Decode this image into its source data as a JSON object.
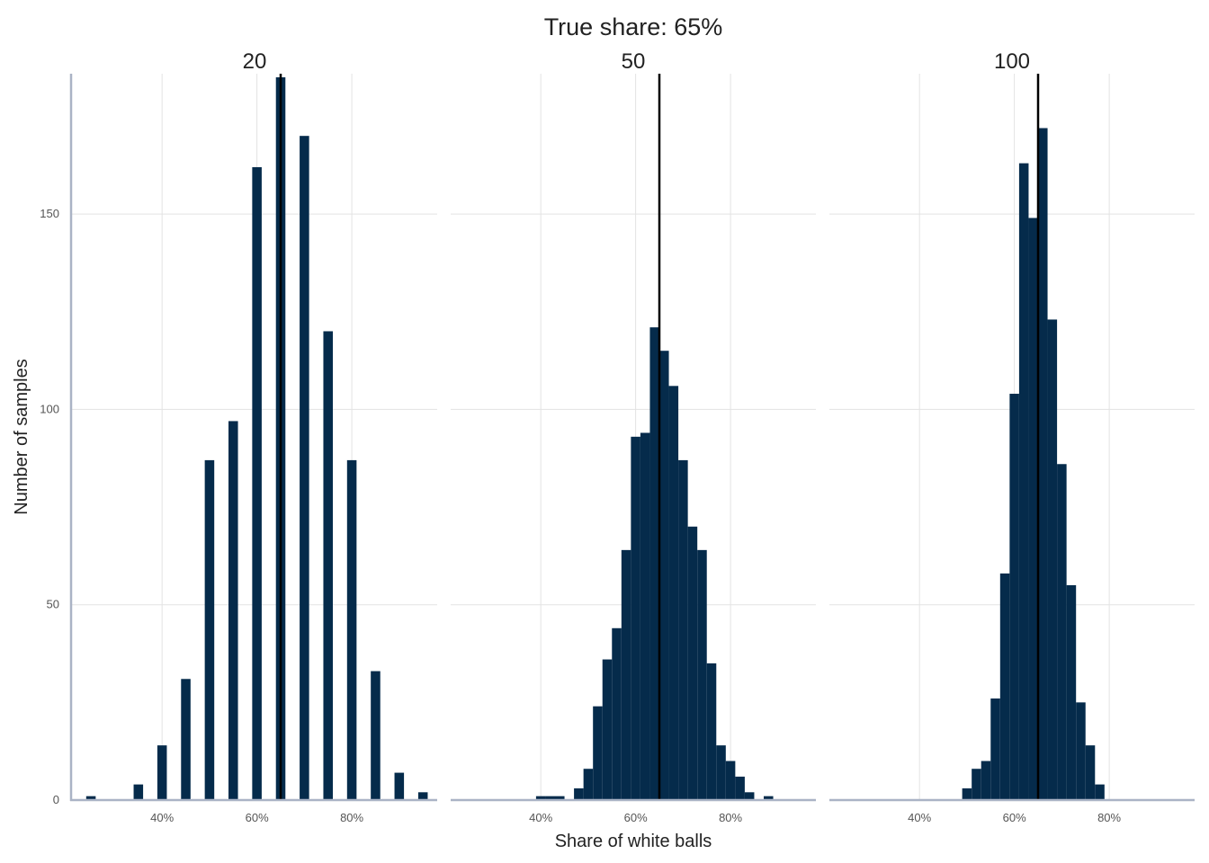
{
  "chart_data": {
    "type": "bar",
    "title": "True share: 65%",
    "xlabel": "Share of white balls",
    "ylabel": "Number of samples",
    "xlim": [
      0.21,
      0.98
    ],
    "ylim": [
      0,
      185
    ],
    "xticks": [
      0.4,
      0.6,
      0.8
    ],
    "xtick_labels": [
      "40%",
      "60%",
      "80%"
    ],
    "yticks": [
      0,
      50,
      100,
      150
    ],
    "ytick_labels": [
      "0",
      "50",
      "100",
      "150"
    ],
    "reference_line": {
      "x": 0.65
    },
    "grid": true,
    "bar_color": "#052b4b",
    "facets": [
      {
        "label": "20",
        "bin_width": 0.02,
        "bins": [
          {
            "x": 0.25,
            "count": 1
          },
          {
            "x": 0.35,
            "count": 4
          },
          {
            "x": 0.4,
            "count": 14
          },
          {
            "x": 0.45,
            "count": 31
          },
          {
            "x": 0.5,
            "count": 87
          },
          {
            "x": 0.55,
            "count": 97
          },
          {
            "x": 0.6,
            "count": 162
          },
          {
            "x": 0.65,
            "count": 185
          },
          {
            "x": 0.7,
            "count": 170
          },
          {
            "x": 0.75,
            "count": 120
          },
          {
            "x": 0.8,
            "count": 87
          },
          {
            "x": 0.85,
            "count": 33
          },
          {
            "x": 0.9,
            "count": 7
          },
          {
            "x": 0.95,
            "count": 2
          }
        ]
      },
      {
        "label": "50",
        "bin_width": 0.02,
        "bins": [
          {
            "x": 0.4,
            "count": 1
          },
          {
            "x": 0.42,
            "count": 1
          },
          {
            "x": 0.44,
            "count": 1
          },
          {
            "x": 0.48,
            "count": 3
          },
          {
            "x": 0.5,
            "count": 8
          },
          {
            "x": 0.52,
            "count": 24
          },
          {
            "x": 0.54,
            "count": 36
          },
          {
            "x": 0.56,
            "count": 44
          },
          {
            "x": 0.58,
            "count": 64
          },
          {
            "x": 0.6,
            "count": 93
          },
          {
            "x": 0.62,
            "count": 94
          },
          {
            "x": 0.64,
            "count": 121
          },
          {
            "x": 0.66,
            "count": 115
          },
          {
            "x": 0.68,
            "count": 106
          },
          {
            "x": 0.7,
            "count": 87
          },
          {
            "x": 0.72,
            "count": 70
          },
          {
            "x": 0.74,
            "count": 64
          },
          {
            "x": 0.76,
            "count": 35
          },
          {
            "x": 0.78,
            "count": 14
          },
          {
            "x": 0.8,
            "count": 10
          },
          {
            "x": 0.82,
            "count": 6
          },
          {
            "x": 0.84,
            "count": 2
          },
          {
            "x": 0.88,
            "count": 1
          }
        ]
      },
      {
        "label": "100",
        "bin_width": 0.02,
        "bins": [
          {
            "x": 0.5,
            "count": 3
          },
          {
            "x": 0.52,
            "count": 8
          },
          {
            "x": 0.54,
            "count": 10
          },
          {
            "x": 0.56,
            "count": 26
          },
          {
            "x": 0.58,
            "count": 58
          },
          {
            "x": 0.6,
            "count": 104
          },
          {
            "x": 0.62,
            "count": 163
          },
          {
            "x": 0.64,
            "count": 149
          },
          {
            "x": 0.66,
            "count": 172
          },
          {
            "x": 0.68,
            "count": 123
          },
          {
            "x": 0.7,
            "count": 86
          },
          {
            "x": 0.72,
            "count": 55
          },
          {
            "x": 0.74,
            "count": 25
          },
          {
            "x": 0.76,
            "count": 14
          },
          {
            "x": 0.78,
            "count": 4
          }
        ]
      }
    ]
  }
}
